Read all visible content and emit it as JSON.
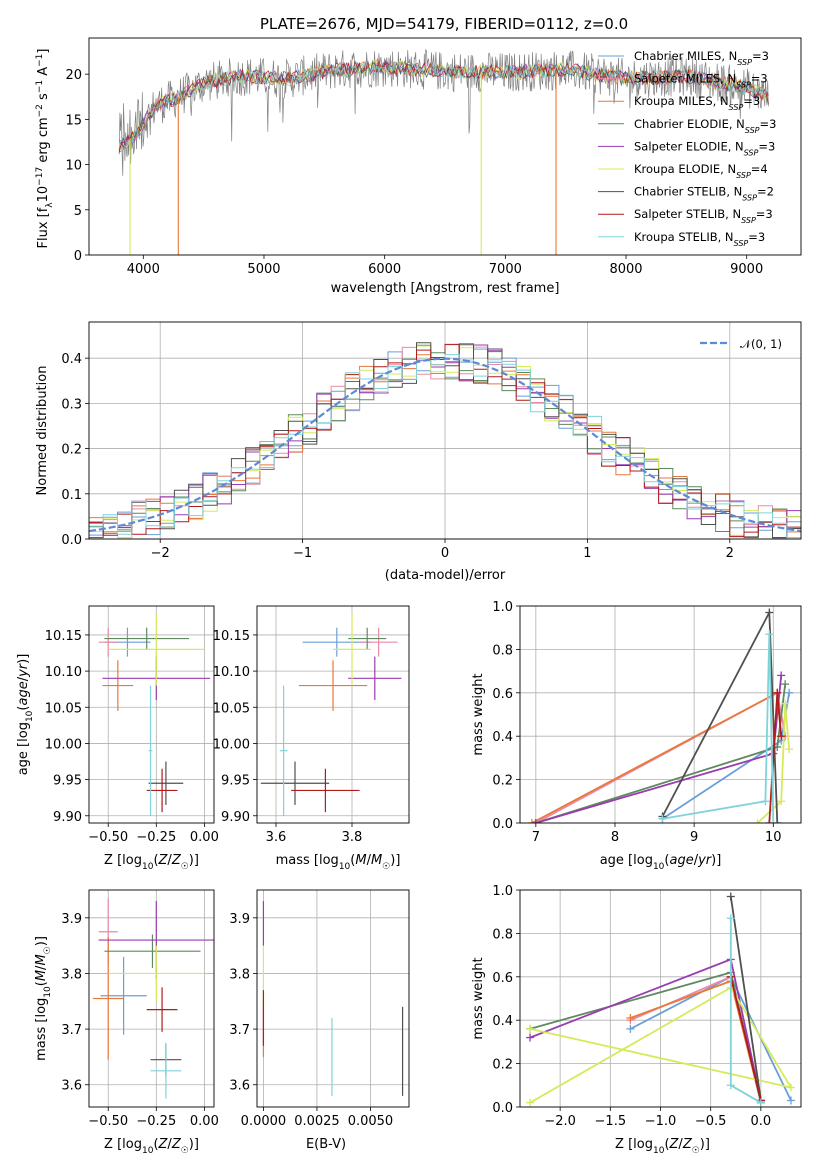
{
  "figure_title": "PLATE=2676, MJD=54179, FIBERID=0112, z=0.0",
  "colors": {
    "Chabrier MILES": "#6a9fd8",
    "Salpeter MILES": "#e88ca6",
    "Kroupa MILES": "#e8793a",
    "Chabrier ELODIE": "#5f8a5f",
    "Salpeter ELODIE": "#9a3cb0",
    "Kroupa ELODIE": "#d6ea5a",
    "Chabrier STELIB": "#505050",
    "Salpeter STELIB": "#b01c1c",
    "Kroupa STELIB": "#7fd3d9",
    "normal": "#5b8bd6"
  },
  "chart_data": [
    {
      "id": "spectrum",
      "type": "line",
      "title": "PLATE=2676, MJD=54179, FIBERID=0112, z=0.0",
      "xlabel": "wavelength [Angstrom, rest frame]",
      "ylabel": "Flux [f_λ 10^-17 erg cm^-2 s^-1 A^-1]",
      "xlim": [
        3550,
        9450
      ],
      "ylim": [
        0,
        24
      ],
      "xticks": [
        4000,
        5000,
        6000,
        7000,
        8000,
        9000
      ],
      "yticks": [
        0,
        5,
        10,
        15,
        20
      ],
      "legend_position": "top-right",
      "legend": [
        "Chabrier MILES, N_SSP=3",
        "Salpeter MILES, N_SSP=3",
        "Kroupa MILES, N_SSP=3",
        "Chabrier ELODIE, N_SSP=3",
        "Salpeter ELODIE, N_SSP=3",
        "Kroupa ELODIE, N_SSP=4",
        "Chabrier STELIB, N_SSP=2",
        "Salpeter STELIB, N_SSP=3",
        "Kroupa STELIB, N_SSP=3"
      ],
      "continuum": [
        [
          3800,
          12
        ],
        [
          3950,
          13.5
        ],
        [
          4100,
          16.5
        ],
        [
          4300,
          17.5
        ],
        [
          4500,
          19
        ],
        [
          4800,
          19.8
        ],
        [
          5200,
          19.5
        ],
        [
          5600,
          20.5
        ],
        [
          6000,
          20.8
        ],
        [
          6500,
          20.3
        ],
        [
          7000,
          20.2
        ],
        [
          7500,
          20.5
        ],
        [
          8000,
          19.5
        ],
        [
          8500,
          19.8
        ],
        [
          9000,
          18.5
        ],
        [
          9180,
          17.5
        ]
      ],
      "dropouts": [
        {
          "x": 3890,
          "series": "Kroupa ELODIE"
        },
        {
          "x": 4290,
          "series": "Kroupa MILES"
        },
        {
          "x": 6800,
          "series": "Kroupa ELODIE"
        },
        {
          "x": 7420,
          "series": "Kroupa MILES"
        }
      ]
    },
    {
      "id": "residuals",
      "type": "line",
      "xlabel": "(data-model)/error",
      "ylabel": "Normed distribution",
      "xlim": [
        -2.5,
        2.5
      ],
      "ylim": [
        0,
        0.48
      ],
      "xticks": [
        -2,
        -1,
        0,
        1,
        2
      ],
      "yticks": [
        0.0,
        0.1,
        0.2,
        0.3,
        0.4
      ],
      "grid": true,
      "legend_position": "top-right",
      "legend": [
        "𝒩(0, 1)"
      ],
      "bin_width": 0.1
    },
    {
      "id": "age_vs_Z",
      "type": "scatter",
      "xlabel": "Z [log10(Z/Z☉)]",
      "ylabel": "age [log10(age/yr)]",
      "xlim": [
        -0.6,
        0.05
      ],
      "ylim": [
        9.89,
        10.19
      ],
      "xticks": [
        -0.5,
        -0.25,
        0.0
      ],
      "xticklabels": [
        "−0.50",
        "−0.25",
        "0.00"
      ],
      "yticks": [
        9.9,
        9.95,
        10.0,
        10.05,
        10.1,
        10.15
      ],
      "yticklabels": [
        "9.90",
        "9.95",
        "10.00",
        "10.05",
        "10.10",
        "10.15"
      ],
      "grid": true,
      "points": [
        {
          "series": "Chabrier MILES",
          "x": -0.4,
          "xerr": 0.12,
          "y": 10.14,
          "yerr": 0.02
        },
        {
          "series": "Salpeter MILES",
          "x": -0.5,
          "xerr": 0.05,
          "y": 10.14,
          "yerr": 0.02
        },
        {
          "series": "Kroupa MILES",
          "x": -0.45,
          "xerr": 0.08,
          "y": 10.08,
          "yerr": 0.035
        },
        {
          "series": "Chabrier ELODIE",
          "x": -0.3,
          "xerr": 0.22,
          "y": 10.145,
          "yerr": 0.015
        },
        {
          "series": "Salpeter ELODIE",
          "x": -0.25,
          "xerr": 0.28,
          "y": 10.09,
          "yerr": 0.03
        },
        {
          "series": "Kroupa ELODIE",
          "x": -0.25,
          "xerr": 0.25,
          "y": 10.13,
          "yerr": 0.05
        },
        {
          "series": "Chabrier STELIB",
          "x": -0.2,
          "xerr": 0.09,
          "y": 9.945,
          "yerr": 0.03
        },
        {
          "series": "Salpeter STELIB",
          "x": -0.22,
          "xerr": 0.08,
          "y": 9.935,
          "yerr": 0.03
        },
        {
          "series": "Kroupa STELIB",
          "x": -0.28,
          "xerr": 0.01,
          "y": 9.99,
          "yerr": 0.09
        }
      ]
    },
    {
      "id": "age_vs_mass",
      "type": "scatter",
      "xlabel": "mass [log10(M/M☉)]",
      "xlim": [
        3.55,
        3.95
      ],
      "ylim": [
        9.89,
        10.19
      ],
      "xticks": [
        3.6,
        3.8
      ],
      "yticks": [
        9.9,
        9.95,
        10.0,
        10.05,
        10.1,
        10.15
      ],
      "yticklabels": [
        "9.90",
        "9.95",
        "10.00",
        "10.05",
        "10.10",
        "10.15"
      ],
      "grid": true,
      "points": [
        {
          "series": "Chabrier MILES",
          "x": 3.76,
          "xerr": 0.09,
          "y": 10.14,
          "yerr": 0.02
        },
        {
          "series": "Salpeter MILES",
          "x": 3.87,
          "xerr": 0.05,
          "y": 10.14,
          "yerr": 0.02
        },
        {
          "series": "Kroupa MILES",
          "x": 3.75,
          "xerr": 0.09,
          "y": 10.08,
          "yerr": 0.035
        },
        {
          "series": "Chabrier ELODIE",
          "x": 3.84,
          "xerr": 0.05,
          "y": 10.145,
          "yerr": 0.015
        },
        {
          "series": "Salpeter ELODIE",
          "x": 3.86,
          "xerr": 0.07,
          "y": 10.09,
          "yerr": 0.03
        },
        {
          "series": "Kroupa ELODIE",
          "x": 3.8,
          "xerr": 0.05,
          "y": 10.13,
          "yerr": 0.05
        },
        {
          "series": "Chabrier STELIB",
          "x": 3.65,
          "xerr": 0.09,
          "y": 9.945,
          "yerr": 0.03
        },
        {
          "series": "Salpeter STELIB",
          "x": 3.73,
          "xerr": 0.09,
          "y": 9.935,
          "yerr": 0.03
        },
        {
          "series": "Kroupa STELIB",
          "x": 3.62,
          "xerr": 0.01,
          "y": 9.99,
          "yerr": 0.09
        }
      ]
    },
    {
      "id": "weight_vs_age",
      "type": "line",
      "xlabel": "age  [log10(age/yr)]",
      "ylabel": "mass weight",
      "xlim": [
        6.8,
        10.35
      ],
      "ylim": [
        0,
        1.0
      ],
      "xticks": [
        7,
        8,
        9,
        10
      ],
      "yticks": [
        0.0,
        0.2,
        0.4,
        0.6,
        0.8,
        1.0
      ],
      "grid": true,
      "series": [
        {
          "name": "Chabrier MILES",
          "points": [
            [
              8.6,
              0.02
            ],
            [
              10.1,
              0.38
            ],
            [
              10.2,
              0.6
            ]
          ]
        },
        {
          "name": "Salpeter MILES",
          "points": [
            [
              7.0,
              0.0
            ],
            [
              10.05,
              0.6
            ],
            [
              10.15,
              0.4
            ]
          ]
        },
        {
          "name": "Kroupa MILES",
          "points": [
            [
              6.95,
              0.0
            ],
            [
              10.05,
              0.6
            ],
            [
              10.1,
              0.4
            ]
          ]
        },
        {
          "name": "Chabrier ELODIE",
          "points": [
            [
              7.0,
              0.0
            ],
            [
              10.05,
              0.35
            ],
            [
              10.15,
              0.64
            ]
          ]
        },
        {
          "name": "Salpeter ELODIE",
          "points": [
            [
              7.0,
              0.0
            ],
            [
              10.0,
              0.32
            ],
            [
              10.1,
              0.68
            ]
          ]
        },
        {
          "name": "Kroupa ELODIE",
          "points": [
            [
              9.8,
              0.0
            ],
            [
              10.1,
              0.1
            ],
            [
              10.15,
              0.55
            ],
            [
              10.2,
              0.34
            ]
          ]
        },
        {
          "name": "Chabrier STELIB",
          "points": [
            [
              8.6,
              0.03
            ],
            [
              9.95,
              0.97
            ],
            [
              10.05,
              0.0
            ]
          ]
        },
        {
          "name": "Salpeter STELIB",
          "points": [
            [
              9.95,
              0.0
            ],
            [
              10.05,
              0.6
            ],
            [
              10.1,
              0.4
            ]
          ]
        },
        {
          "name": "Kroupa STELIB",
          "points": [
            [
              8.6,
              0.02
            ],
            [
              9.9,
              0.1
            ],
            [
              9.95,
              0.87
            ],
            [
              10.0,
              0.0
            ]
          ]
        }
      ]
    },
    {
      "id": "mass_vs_Z",
      "type": "scatter",
      "xlabel": "Z [log10(Z/Z☉)]",
      "ylabel": "mass [log10(M/M☉)]",
      "xlim": [
        -0.6,
        0.05
      ],
      "ylim": [
        3.56,
        3.95
      ],
      "xticks": [
        -0.5,
        -0.25,
        0.0
      ],
      "xticklabels": [
        "−0.50",
        "−0.25",
        "0.00"
      ],
      "yticks": [
        3.6,
        3.7,
        3.8,
        3.9
      ],
      "grid": true,
      "points": [
        {
          "series": "Chabrier MILES",
          "x": -0.42,
          "xerr": 0.12,
          "y": 3.76,
          "yerr": 0.07
        },
        {
          "series": "Salpeter MILES",
          "x": -0.5,
          "xerr": 0.05,
          "y": 3.875,
          "yerr": 0.06
        },
        {
          "series": "Kroupa MILES",
          "x": -0.5,
          "xerr": 0.08,
          "y": 3.755,
          "yerr": 0.11
        },
        {
          "series": "Chabrier ELODIE",
          "x": -0.27,
          "xerr": 0.25,
          "y": 3.84,
          "yerr": 0.03
        },
        {
          "series": "Salpeter ELODIE",
          "x": -0.25,
          "xerr": 0.3,
          "y": 3.86,
          "yerr": 0.07
        },
        {
          "series": "Kroupa ELODIE",
          "x": -0.25,
          "xerr": 0.25,
          "y": 3.8,
          "yerr": 0.05
        },
        {
          "series": "Chabrier STELIB",
          "x": -0.2,
          "xerr": 0.08,
          "y": 3.645,
          "yerr": 0.03
        },
        {
          "series": "Salpeter STELIB",
          "x": -0.22,
          "xerr": 0.08,
          "y": 3.735,
          "yerr": 0.04
        },
        {
          "series": "Kroupa STELIB",
          "x": -0.2,
          "xerr": 0.08,
          "y": 3.625,
          "yerr": 0.05
        }
      ]
    },
    {
      "id": "mass_vs_ebv",
      "type": "scatter",
      "xlabel": "E(B-V)",
      "xlim": [
        -0.0003,
        0.0068
      ],
      "ylim": [
        3.56,
        3.95
      ],
      "xticks": [
        0.0,
        0.0025,
        0.005
      ],
      "xticklabels": [
        "0.0000",
        "0.0025",
        "0.0050"
      ],
      "yticks": [
        3.6,
        3.7,
        3.8,
        3.9
      ],
      "grid": true,
      "points": [
        {
          "series": "Salpeter ELODIE",
          "x": 0.0,
          "y": 3.89,
          "yerr": 0.04
        },
        {
          "series": "Kroupa ELODIE",
          "x": 0.0,
          "y": 3.8,
          "yerr": 0.05
        },
        {
          "series": "Kroupa MILES",
          "x": 0.0,
          "y": 3.7,
          "yerr": 0.05
        },
        {
          "series": "Salpeter STELIB",
          "x": 0.0,
          "y": 3.72,
          "yerr": 0.05
        },
        {
          "series": "Kroupa STELIB",
          "x": 0.0032,
          "y": 3.65,
          "yerr": 0.07
        },
        {
          "series": "Chabrier STELIB",
          "x": 0.0065,
          "y": 3.66,
          "yerr": 0.08
        }
      ]
    },
    {
      "id": "weight_vs_Z",
      "type": "line",
      "xlabel": "Z [log10(Z/Z☉)]",
      "ylabel": "mass weight",
      "xlim": [
        -2.4,
        0.4
      ],
      "ylim": [
        0,
        1.0
      ],
      "xticks": [
        -2.0,
        -1.5,
        -1.0,
        -0.5,
        0.0
      ],
      "xticklabels": [
        "−2.0",
        "−1.5",
        "−1.0",
        "−0.5",
        "0.0"
      ],
      "yticks": [
        0.0,
        0.2,
        0.4,
        0.6,
        0.8,
        1.0
      ],
      "grid": true,
      "series": [
        {
          "name": "Chabrier MILES",
          "points": [
            [
              -1.3,
              0.36
            ],
            [
              -0.3,
              0.6
            ],
            [
              0.3,
              0.03
            ]
          ]
        },
        {
          "name": "Salpeter MILES",
          "points": [
            [
              -1.3,
              0.4
            ],
            [
              -0.3,
              0.6
            ],
            [
              0.0,
              0.03
            ]
          ]
        },
        {
          "name": "Kroupa MILES",
          "points": [
            [
              -1.3,
              0.41
            ],
            [
              -0.3,
              0.58
            ],
            [
              0.0,
              0.02
            ]
          ]
        },
        {
          "name": "Chabrier ELODIE",
          "points": [
            [
              -2.3,
              0.36
            ],
            [
              -0.3,
              0.62
            ],
            [
              0.0,
              0.02
            ]
          ]
        },
        {
          "name": "Salpeter ELODIE",
          "points": [
            [
              -2.3,
              0.32
            ],
            [
              -0.3,
              0.68
            ],
            [
              0.0,
              0.03
            ]
          ]
        },
        {
          "name": "Kroupa ELODIE",
          "points": [
            [
              -2.3,
              0.02
            ],
            [
              -0.3,
              0.55
            ],
            [
              0.3,
              0.09
            ],
            [
              -2.3,
              0.36
            ]
          ]
        },
        {
          "name": "Chabrier STELIB",
          "points": [
            [
              -0.3,
              0.97
            ],
            [
              0.0,
              0.03
            ]
          ]
        },
        {
          "name": "Salpeter STELIB",
          "points": [
            [
              -0.3,
              0.6
            ],
            [
              0.0,
              0.03
            ]
          ]
        },
        {
          "name": "Kroupa STELIB",
          "points": [
            [
              -0.3,
              0.87
            ],
            [
              -0.3,
              0.1
            ],
            [
              0.0,
              0.02
            ]
          ]
        }
      ]
    }
  ]
}
